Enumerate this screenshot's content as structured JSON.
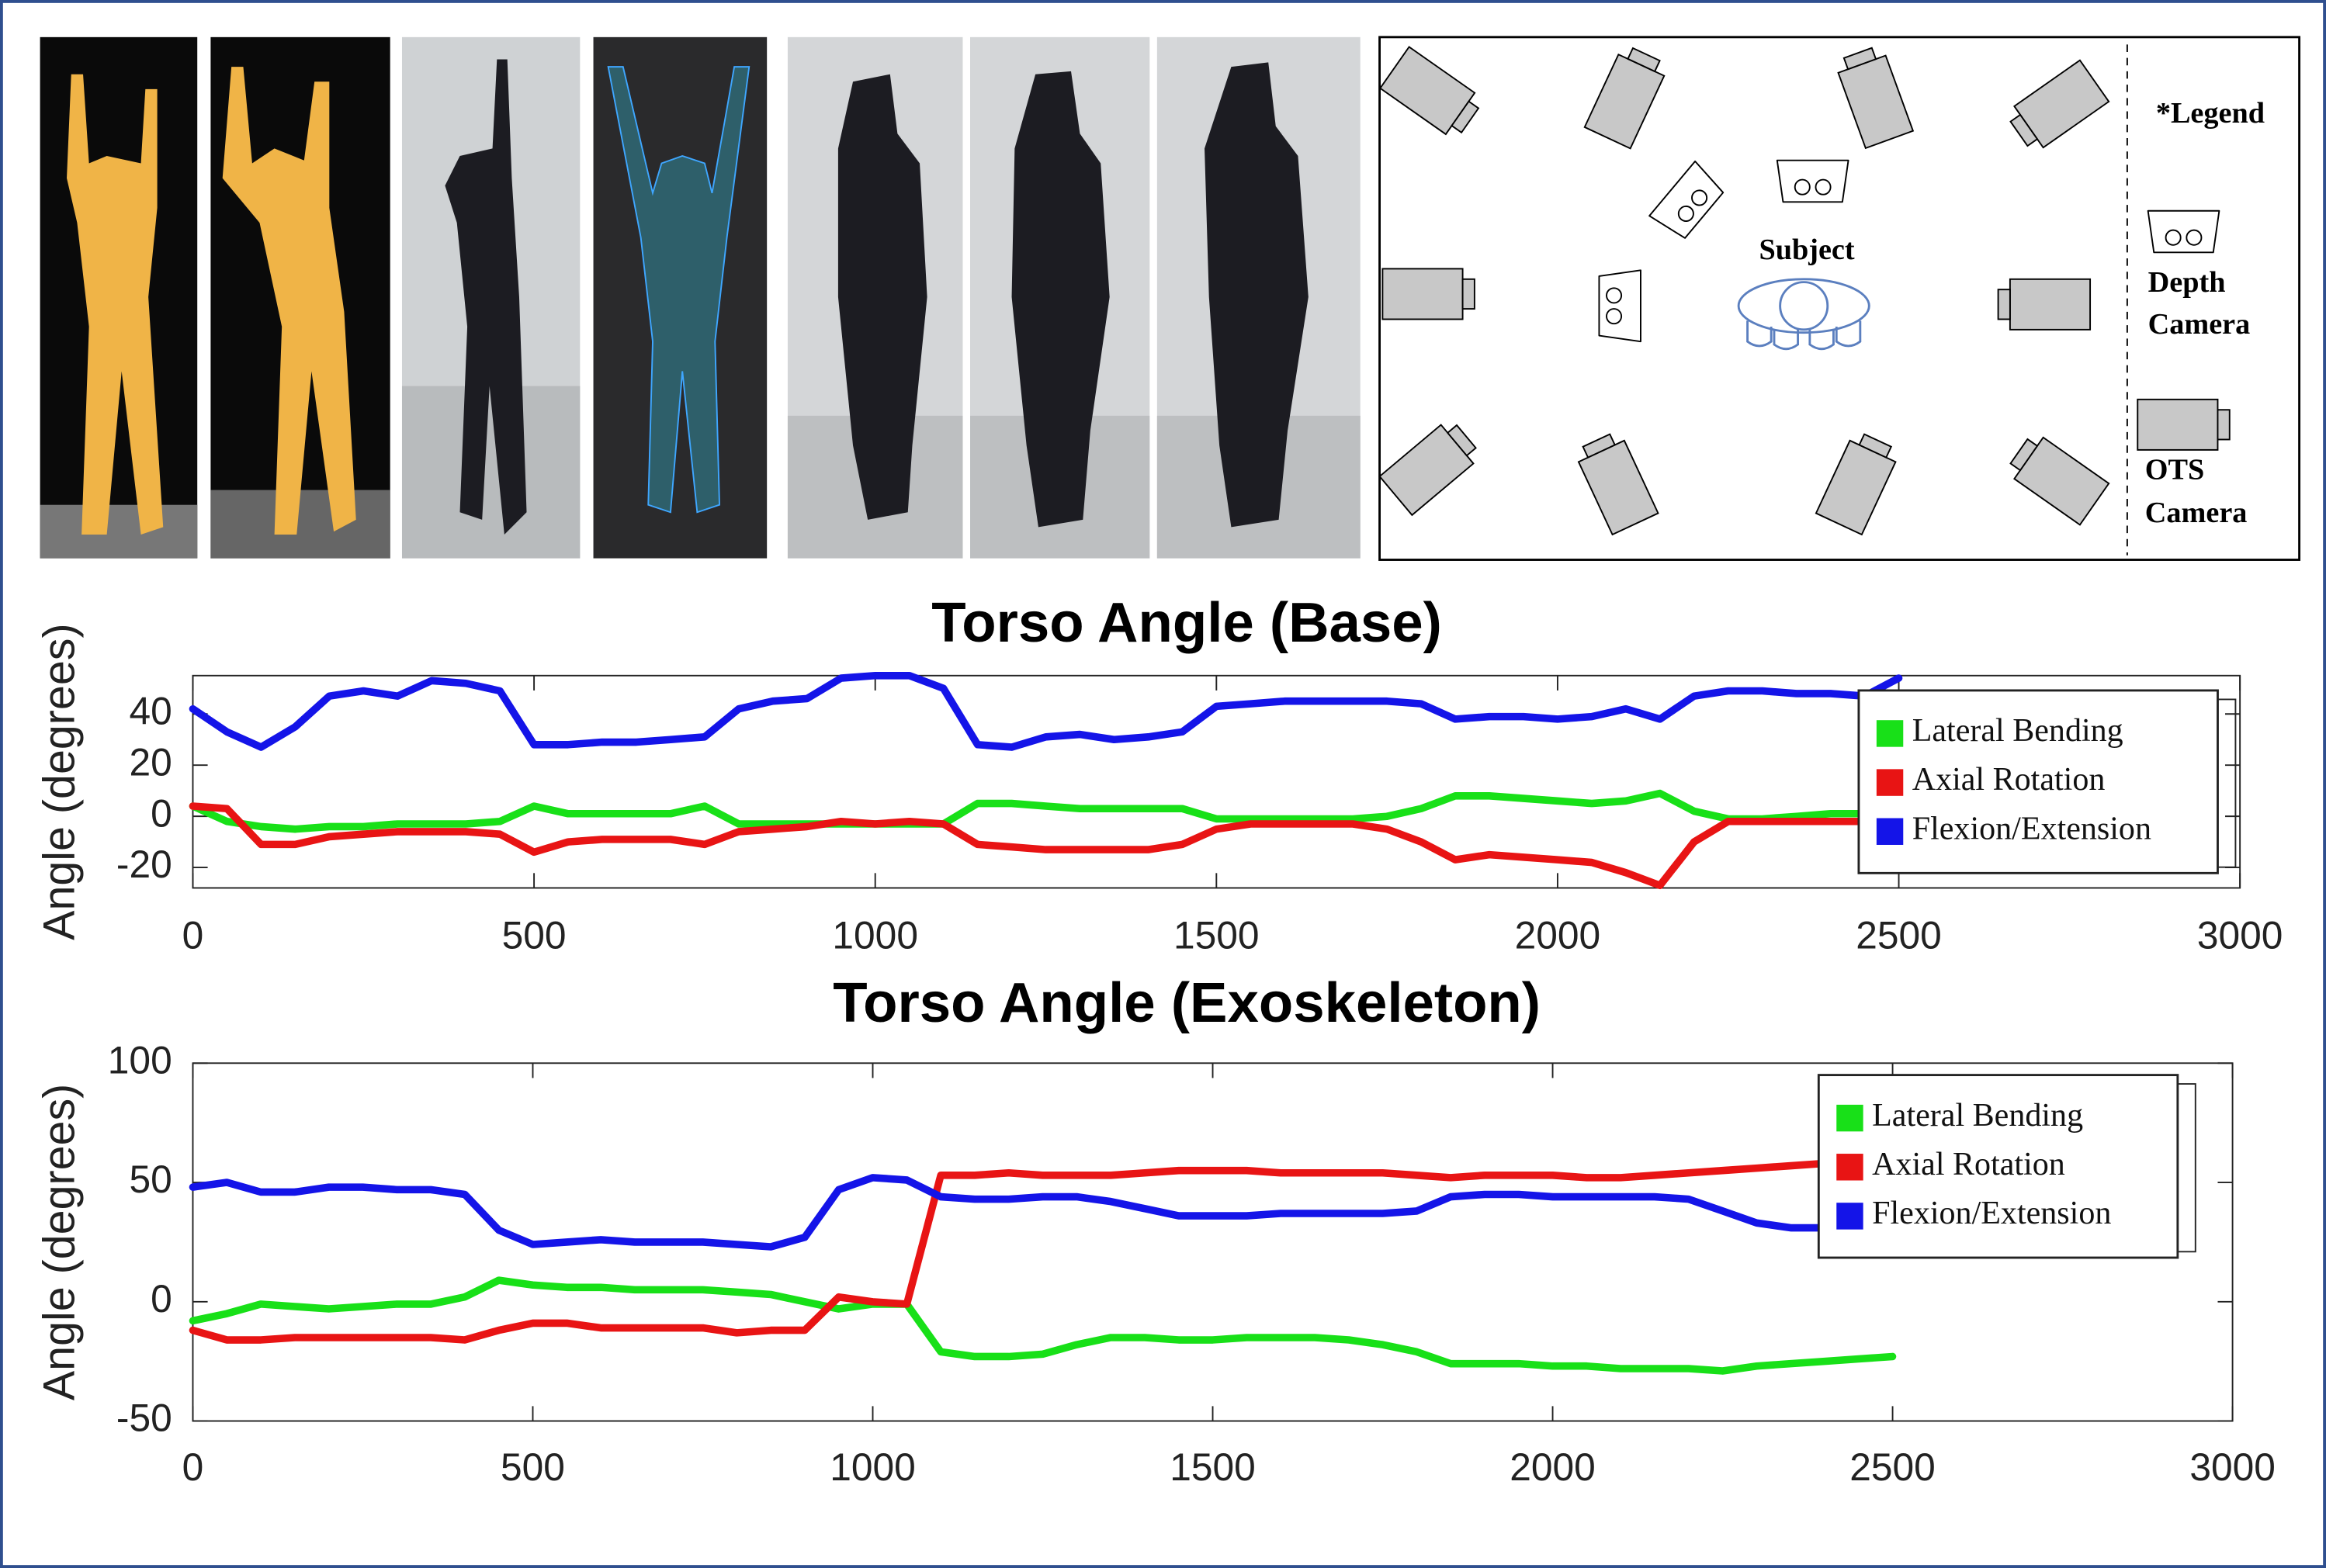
{
  "diagram": {
    "subject": "Subject",
    "legend_title": "*Legend",
    "depth_camera": [
      "Depth",
      "Camera"
    ],
    "ots_camera": [
      "OTS",
      "Camera"
    ]
  },
  "chart_data": [
    {
      "type": "line",
      "title": "Torso Angle (Base)",
      "y_label": "Angle (degrees)",
      "x": [
        0,
        50,
        100,
        150,
        200,
        250,
        300,
        350,
        400,
        450,
        500,
        550,
        600,
        650,
        700,
        750,
        800,
        850,
        900,
        950,
        1000,
        1050,
        1100,
        1150,
        1200,
        1250,
        1300,
        1350,
        1400,
        1450,
        1500,
        1550,
        1600,
        1650,
        1700,
        1750,
        1800,
        1850,
        1900,
        1950,
        2000,
        2050,
        2100,
        2150,
        2200,
        2250,
        2300,
        2350,
        2400,
        2450,
        2500
      ],
      "xlim": [
        0,
        3000
      ],
      "xticks": [
        0,
        500,
        1000,
        1500,
        2000,
        2500,
        3000
      ],
      "ylim": [
        -28,
        55
      ],
      "yticks": [
        -20,
        0,
        20,
        40
      ],
      "grid": false,
      "legend": "right",
      "series": [
        {
          "name": "Lateral Bending",
          "color": "#18e018",
          "values": [
            4,
            -2,
            -4,
            -5,
            -4,
            -4,
            -3,
            -3,
            -3,
            -2,
            4,
            1,
            1,
            1,
            1,
            4,
            -3,
            -3,
            -3,
            -3,
            -3,
            -3,
            -3,
            5,
            5,
            4,
            3,
            3,
            3,
            3,
            -1,
            -1,
            -1,
            -1,
            -1,
            0,
            3,
            8,
            8,
            7,
            6,
            5,
            6,
            9,
            2,
            -1,
            -1,
            0,
            1,
            1,
            null
          ]
        },
        {
          "name": "Axial Rotation",
          "color": "#e81414",
          "values": [
            4,
            3,
            -11,
            -11,
            -8,
            -7,
            -6,
            -6,
            -6,
            -7,
            -14,
            -10,
            -9,
            -9,
            -9,
            -11,
            -6,
            -5,
            -4,
            -2,
            -3,
            -2,
            -3,
            -11,
            -12,
            -13,
            -13,
            -13,
            -13,
            -11,
            -5,
            -3,
            -3,
            -3,
            -3,
            -5,
            -10,
            -17,
            -15,
            -16,
            -17,
            -18,
            -22,
            -27,
            -10,
            -2,
            -2,
            -2,
            -2,
            -2,
            null
          ]
        },
        {
          "name": "Flexion/Extension",
          "color": "#1414e8",
          "values": [
            42,
            33,
            27,
            35,
            47,
            49,
            47,
            53,
            52,
            49,
            28,
            28,
            29,
            29,
            30,
            31,
            42,
            45,
            46,
            54,
            55,
            55,
            50,
            28,
            27,
            31,
            32,
            30,
            31,
            33,
            43,
            44,
            45,
            45,
            45,
            45,
            44,
            38,
            39,
            39,
            38,
            39,
            42,
            38,
            47,
            49,
            49,
            48,
            48,
            47,
            54
          ]
        }
      ]
    },
    {
      "type": "line",
      "title": "Torso Angle (Exoskeleton)",
      "y_label": "Angle (degrees)",
      "x": [
        0,
        50,
        100,
        150,
        200,
        250,
        300,
        350,
        400,
        450,
        500,
        550,
        600,
        650,
        700,
        750,
        800,
        850,
        900,
        950,
        1000,
        1050,
        1100,
        1150,
        1200,
        1250,
        1300,
        1350,
        1400,
        1450,
        1500,
        1550,
        1600,
        1650,
        1700,
        1750,
        1800,
        1850,
        1900,
        1950,
        2000,
        2050,
        2100,
        2150,
        2200,
        2250,
        2300,
        2350,
        2400,
        2450,
        2500
      ],
      "xlim": [
        0,
        3000
      ],
      "xticks": [
        0,
        500,
        1000,
        1500,
        2000,
        2500,
        3000
      ],
      "ylim": [
        -50,
        100
      ],
      "yticks": [
        -50,
        0,
        50,
        100
      ],
      "grid": false,
      "legend": "upper right",
      "series": [
        {
          "name": "Lateral Bending",
          "color": "#18e018",
          "values": [
            -8,
            -5,
            -1,
            -2,
            -3,
            -2,
            -1,
            -1,
            2,
            9,
            7,
            6,
            6,
            5,
            5,
            5,
            4,
            3,
            0,
            -3,
            -1,
            -1,
            -21,
            -23,
            -23,
            -22,
            -18,
            -15,
            -15,
            -16,
            -16,
            -15,
            -15,
            -15,
            -16,
            -18,
            -21,
            -26,
            -26,
            -26,
            -27,
            -27,
            -28,
            -28,
            -28,
            -29,
            -27,
            -26,
            -25,
            -24,
            -23
          ]
        },
        {
          "name": "Axial Rotation",
          "color": "#e81414",
          "values": [
            -12,
            -16,
            -16,
            -15,
            -15,
            -15,
            -15,
            -15,
            -16,
            -12,
            -9,
            -9,
            -11,
            -11,
            -11,
            -11,
            -13,
            -12,
            -12,
            2,
            0,
            -1,
            53,
            53,
            54,
            53,
            53,
            53,
            54,
            55,
            55,
            55,
            54,
            54,
            54,
            54,
            53,
            52,
            53,
            53,
            53,
            52,
            52,
            53,
            54,
            55,
            56,
            57,
            58,
            null,
            null
          ]
        },
        {
          "name": "Flexion/Extension",
          "color": "#1414e8",
          "values": [
            48,
            50,
            46,
            46,
            48,
            48,
            47,
            47,
            45,
            30,
            24,
            25,
            26,
            25,
            25,
            25,
            24,
            23,
            27,
            47,
            52,
            51,
            44,
            43,
            43,
            44,
            44,
            42,
            39,
            36,
            36,
            36,
            37,
            37,
            37,
            37,
            38,
            44,
            45,
            45,
            44,
            44,
            44,
            44,
            43,
            38,
            33,
            31,
            31,
            null,
            null
          ]
        }
      ]
    }
  ]
}
